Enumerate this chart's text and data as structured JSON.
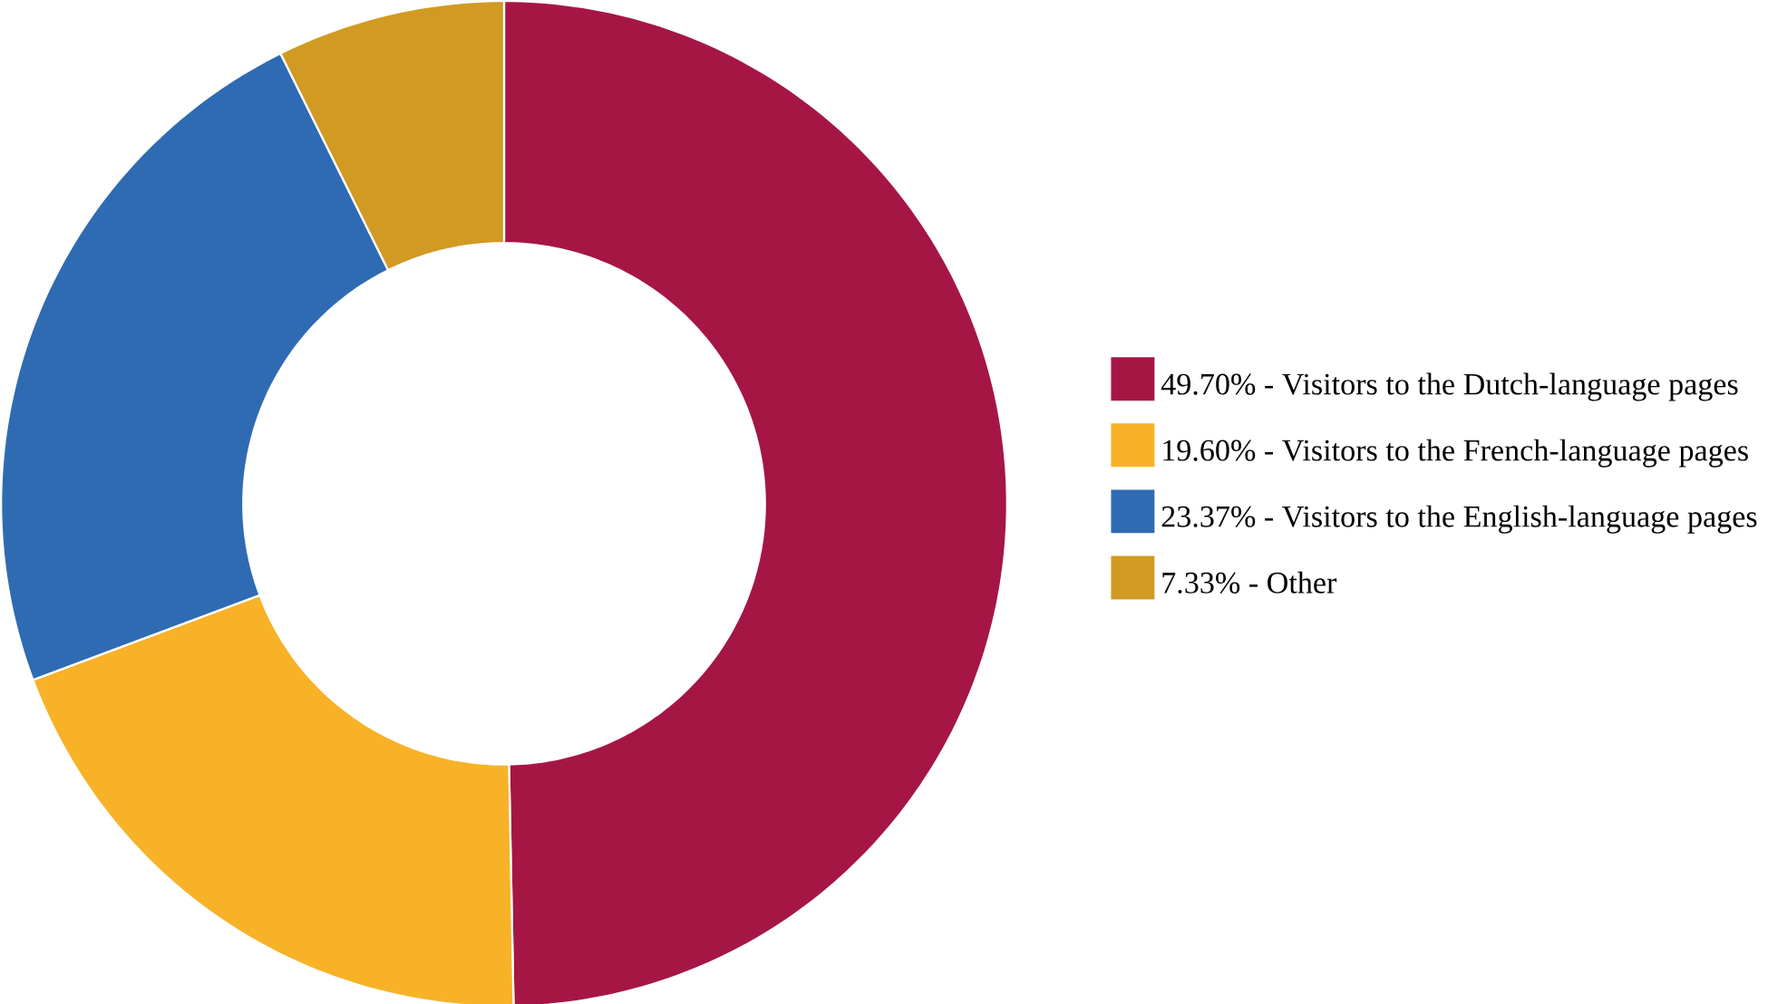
{
  "chart_data": {
    "type": "donut",
    "categories": [
      "49.70% - Visitors to the Dutch-language pages",
      "19.60% - Visitors to the French-language pages",
      "23.37% - Visitors to the English-language pages",
      "7.33% - Other"
    ],
    "values": [
      49.7,
      19.6,
      23.37,
      7.33
    ],
    "colors": [
      "#a51645",
      "#f7b228",
      "#2f6bb3",
      "#d19a22"
    ],
    "legend": "right"
  }
}
